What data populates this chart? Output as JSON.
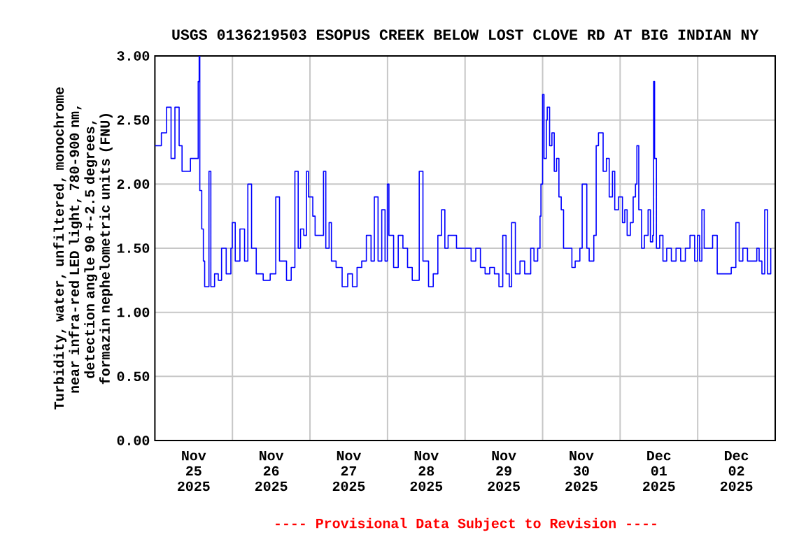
{
  "chart_data": {
    "type": "step",
    "title": "USGS 0136219503 ESOPUS CREEK BELOW LOST CLOVE RD AT BIG INDIAN NY",
    "ylabel": "Turbidity, water, unfiltered, monochrome near infra-red LED light, 780-900 nm, detection angle 90 +-2.5 degrees, formazin nephelometric units (FNU)",
    "annotations": [
      "---- Provisional Data Subject to Revision ----"
    ],
    "color": "#0000ff",
    "grid": true,
    "xlim": [
      "2025-11-25T00:00",
      "2025-12-03T00:00"
    ],
    "xticks": [
      {
        "value": "2025-11-25T12:00",
        "label": "Nov 25 2025"
      },
      {
        "value": "2025-11-26T12:00",
        "label": "Nov 26 2025"
      },
      {
        "value": "2025-11-27T12:00",
        "label": "Nov 27 2025"
      },
      {
        "value": "2025-11-28T12:00",
        "label": "Nov 28 2025"
      },
      {
        "value": "2025-11-29T12:00",
        "label": "Nov 29 2025"
      },
      {
        "value": "2025-11-30T12:00",
        "label": "Nov 30 2025"
      },
      {
        "value": "2025-12-01T12:00",
        "label": "Dec 01 2025"
      },
      {
        "value": "2025-12-02T12:00",
        "label": "Dec 02 2025"
      },
      {
        "value": "2025-11-26T00:00",
        "label": null
      },
      {
        "value": "2025-11-27T00:00",
        "label": null
      },
      {
        "value": "2025-11-28T00:00",
        "label": null
      },
      {
        "value": "2025-11-29T00:00",
        "label": null
      },
      {
        "value": "2025-11-30T00:00",
        "label": null
      },
      {
        "value": "2025-12-01T00:00",
        "label": null
      },
      {
        "value": "2025-12-02T00:00",
        "label": null
      }
    ],
    "ylim": [
      0,
      3
    ],
    "yticks": [
      {
        "value": 0,
        "label": "0.00"
      },
      {
        "value": 0.5,
        "label": "0.50"
      },
      {
        "value": 1,
        "label": "1.00"
      },
      {
        "value": 1.5,
        "label": "1.50"
      },
      {
        "value": 2,
        "label": "2.00"
      },
      {
        "value": 2.5,
        "label": "2.50"
      },
      {
        "value": 3,
        "label": "3.00"
      }
    ],
    "x": [
      "2025-11-25T00:00",
      "2025-11-25T02:00",
      "2025-11-25T03:36",
      "2025-11-25T05:00",
      "2025-11-25T06:12",
      "2025-11-25T07:30",
      "2025-11-25T08:24",
      "2025-11-25T11:00",
      "2025-11-25T12:30",
      "2025-11-25T13:24",
      "2025-11-25T13:42",
      "2025-11-25T13:54",
      "2025-11-25T14:30",
      "2025-11-25T15:00",
      "2025-11-25T15:24",
      "2025-11-25T16:27",
      "2025-11-25T16:44",
      "2025-11-25T17:19",
      "2025-11-25T18:28",
      "2025-11-25T19:37",
      "2025-11-25T20:38",
      "2025-11-25T22:04",
      "2025-11-25T23:31",
      "2025-11-25T23:57",
      "2025-11-26T00:52",
      "2025-11-26T02:19",
      "2025-11-26T03:45",
      "2025-11-26T04:46",
      "2025-11-26T05:55",
      "2025-11-26T07:22",
      "2025-11-26T09:31",
      "2025-11-26T11:41",
      "2025-11-26T13:25",
      "2025-11-26T14:34",
      "2025-11-26T16:44",
      "2025-11-26T18:11",
      "2025-11-26T19:20",
      "2025-11-26T20:21",
      "2025-11-26T21:04",
      "2025-11-26T22:04",
      "2025-11-26T22:56",
      "2025-11-26T23:31",
      "2025-11-27T00:52",
      "2025-11-27T01:35",
      "2025-11-27T03:02",
      "2025-11-27T04:11",
      "2025-11-27T04:54",
      "2025-11-27T05:55",
      "2025-11-27T06:38",
      "2025-11-27T08:05",
      "2025-11-27T09:57",
      "2025-11-27T11:41",
      "2025-11-27T13:08",
      "2025-11-27T14:34",
      "2025-11-27T16:01",
      "2025-11-27T17:27",
      "2025-11-27T18:54",
      "2025-11-27T19:55",
      "2025-11-27T21:04",
      "2025-11-27T22:13",
      "2025-11-27T23:14",
      "2025-11-27T23:57",
      "2025-11-28T00:26",
      "2025-11-28T01:53",
      "2025-11-28T03:19",
      "2025-11-28T04:46",
      "2025-11-28T06:12",
      "2025-11-28T07:39",
      "2025-11-28T09:05",
      "2025-11-28T09:49",
      "2025-11-28T10:58",
      "2025-11-28T12:42",
      "2025-11-28T14:09",
      "2025-11-28T15:35",
      "2025-11-28T16:44",
      "2025-11-28T17:45",
      "2025-11-28T18:45",
      "2025-11-28T20:12",
      "2025-11-28T21:21",
      "2025-11-28T22:48",
      "2025-11-29T00:26",
      "2025-11-29T01:52",
      "2025-11-29T03:19",
      "2025-11-29T04:45",
      "2025-11-29T06:12",
      "2025-11-29T07:38",
      "2025-11-29T09:05",
      "2025-11-29T10:29",
      "2025-11-29T11:40",
      "2025-11-29T12:41",
      "2025-11-29T13:41",
      "2025-11-29T14:25",
      "2025-11-29T15:34",
      "2025-11-29T17:00",
      "2025-11-29T18:27",
      "2025-11-29T19:53",
      "2025-11-29T20:19",
      "2025-11-29T21:20",
      "2025-11-29T22:29",
      "2025-11-29T23:12",
      "2025-11-29T23:29",
      "2025-11-30T00:00",
      "2025-11-30T00:26",
      "2025-11-30T01:09",
      "2025-11-30T01:26",
      "2025-11-30T02:10",
      "2025-11-30T02:53",
      "2025-11-30T03:36",
      "2025-11-30T04:19",
      "2025-11-30T05:03",
      "2025-11-30T05:46",
      "2025-11-30T06:29",
      "2025-11-30T07:55",
      "2025-11-30T09:04",
      "2025-11-30T10:05",
      "2025-11-30T11:32",
      "2025-11-30T12:15",
      "2025-11-30T12:58",
      "2025-11-30T13:41",
      "2025-11-30T14:25",
      "2025-11-30T15:51",
      "2025-11-30T16:35",
      "2025-11-30T17:18",
      "2025-11-30T18:01",
      "2025-11-30T18:44",
      "2025-11-30T19:45",
      "2025-11-30T20:37",
      "2025-11-30T21:37",
      "2025-11-30T22:20",
      "2025-11-30T23:30",
      "2025-12-01T00:43",
      "2025-12-01T01:26",
      "2025-12-01T02:10",
      "2025-12-01T03:10",
      "2025-12-01T04:02",
      "2025-12-01T04:45",
      "2025-12-01T05:11",
      "2025-12-01T05:46",
      "2025-12-01T06:38",
      "2025-12-01T07:30",
      "2025-12-01T08:39",
      "2025-12-01T09:22",
      "2025-12-01T10:05",
      "2025-12-01T10:22",
      "2025-12-01T10:40",
      "2025-12-01T11:14",
      "2025-12-01T12:15",
      "2025-12-01T13:15",
      "2025-12-01T14:25",
      "2025-12-01T15:51",
      "2025-12-01T17:18",
      "2025-12-01T18:44",
      "2025-12-01T20:11",
      "2025-12-01T21:37",
      "2025-12-01T23:04",
      "2025-12-01T23:56",
      "2025-12-02T00:35",
      "2025-12-02T01:18",
      "2025-12-02T02:01",
      "2025-12-02T03:10",
      "2025-12-02T04:37",
      "2025-12-02T06:03",
      "2025-12-02T07:30",
      "2025-12-02T08:56",
      "2025-12-02T10:23",
      "2025-12-02T11:49",
      "2025-12-02T12:50",
      "2025-12-02T13:59",
      "2025-12-02T15:25",
      "2025-12-02T16:52",
      "2025-12-02T18:18",
      "2025-12-02T19:01",
      "2025-12-02T19:53",
      "2025-12-02T20:45",
      "2025-12-02T21:37",
      "2025-12-02T22:37"
    ],
    "values": [
      2.3,
      2.4,
      2.6,
      2.2,
      2.6,
      2.3,
      2.1,
      2.2,
      2.2,
      2.8,
      3.0,
      1.95,
      1.65,
      1.4,
      1.2,
      1.2,
      2.1,
      1.2,
      1.3,
      1.25,
      1.5,
      1.3,
      1.5,
      1.7,
      1.4,
      1.65,
      1.4,
      2.0,
      1.5,
      1.3,
      1.25,
      1.3,
      1.9,
      1.4,
      1.25,
      1.35,
      2.1,
      1.5,
      1.65,
      1.6,
      2.1,
      1.9,
      1.75,
      1.6,
      1.6,
      2.1,
      1.5,
      1.7,
      1.4,
      1.35,
      1.2,
      1.3,
      1.2,
      1.35,
      1.4,
      1.6,
      1.4,
      1.9,
      1.4,
      1.8,
      1.4,
      2.0,
      1.6,
      1.35,
      1.6,
      1.5,
      1.35,
      1.25,
      1.25,
      2.1,
      1.4,
      1.2,
      1.3,
      1.6,
      1.8,
      1.5,
      1.6,
      1.6,
      1.5,
      1.5,
      1.5,
      1.4,
      1.5,
      1.35,
      1.3,
      1.35,
      1.3,
      1.2,
      1.6,
      1.3,
      1.2,
      1.7,
      1.3,
      1.4,
      1.3,
      1.3,
      1.5,
      1.4,
      1.5,
      1.75,
      2.0,
      2.7,
      2.2,
      2.5,
      2.6,
      2.3,
      2.4,
      2.1,
      2.2,
      1.9,
      1.8,
      1.5,
      1.5,
      1.35,
      1.4,
      1.5,
      2.0,
      2.0,
      1.5,
      1.4,
      1.6,
      2.3,
      2.4,
      2.4,
      2.1,
      2.2,
      1.9,
      2.1,
      1.8,
      1.9,
      1.7,
      1.8,
      1.6,
      1.7,
      1.9,
      2.0,
      2.3,
      1.8,
      1.5,
      1.6,
      1.8,
      1.55,
      1.6,
      2.8,
      2.2,
      1.5,
      1.6,
      1.4,
      1.5,
      1.4,
      1.5,
      1.4,
      1.5,
      1.6,
      1.4,
      1.6,
      1.4,
      1.8,
      1.5,
      1.5,
      1.6,
      1.3,
      1.3,
      1.3,
      1.35,
      1.7,
      1.4,
      1.5,
      1.4,
      1.4,
      1.5,
      1.4,
      1.3,
      1.8,
      1.3,
      1.5
    ]
  }
}
